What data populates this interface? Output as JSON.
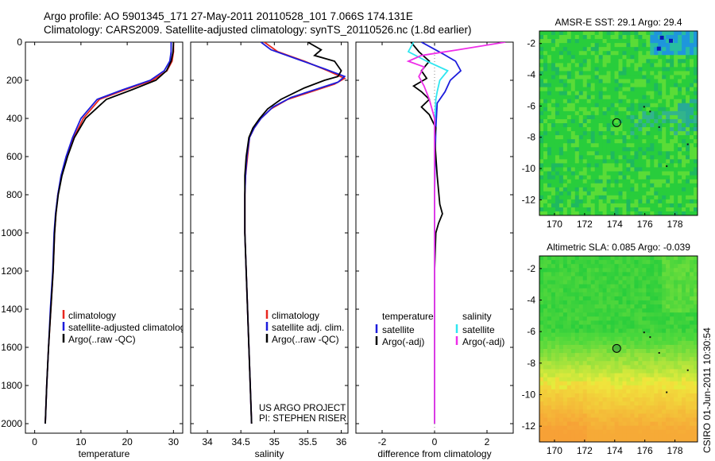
{
  "header": {
    "line1": "Argo profile: AO 5901345_171 27-May-2011 20110528_101 7.066S 174.131E",
    "line2": "Climatology: CARS2009. Satellite-adjusted climatology: synTS_20110526.nc (1.8d earlier)"
  },
  "credit": "CSIRO 01-Jun-2011 10:30:54",
  "colors": {
    "climatology": "#e8261e",
    "satellite": "#1c1cdc",
    "argo": "#000000",
    "sal_satellite": "#2fe6f0",
    "sal_argo": "#ee2ee8",
    "ocean": "#22cc3c"
  },
  "chart_data": [
    {
      "type": "line",
      "id": "temperature",
      "xlabel": "temperature",
      "ylabel": "",
      "xlim": [
        -2,
        32
      ],
      "ylim": [
        2050,
        0
      ],
      "xticks": [
        0,
        10,
        20,
        30
      ],
      "yticks": [
        0,
        200,
        400,
        600,
        800,
        1000,
        1200,
        1400,
        1600,
        1800,
        2000
      ],
      "legend": {
        "position": "bottom-right",
        "entries": [
          "climatology",
          "satellite-adjusted climatology",
          "Argo(..raw -QC)"
        ]
      },
      "series": [
        {
          "name": "climatology",
          "color": "#e8261e",
          "points": [
            [
              30.0,
              0
            ],
            [
              30.0,
              50
            ],
            [
              29.7,
              100
            ],
            [
              28.6,
              150
            ],
            [
              25.5,
              200
            ],
            [
              19.5,
              250
            ],
            [
              14.0,
              300
            ],
            [
              10.5,
              400
            ],
            [
              8.5,
              500
            ],
            [
              7.0,
              600
            ],
            [
              5.8,
              700
            ],
            [
              5.0,
              800
            ],
            [
              4.6,
              900
            ],
            [
              4.3,
              1000
            ],
            [
              4.0,
              1200
            ],
            [
              3.5,
              1400
            ],
            [
              3.0,
              1600
            ],
            [
              2.6,
              1800
            ],
            [
              2.3,
              2000
            ]
          ]
        },
        {
          "name": "satellite-adjusted climatology",
          "color": "#1c1cdc",
          "points": [
            [
              29.5,
              0
            ],
            [
              29.5,
              50
            ],
            [
              29.2,
              100
            ],
            [
              28.0,
              150
            ],
            [
              25.0,
              200
            ],
            [
              19.0,
              250
            ],
            [
              13.5,
              300
            ],
            [
              10.0,
              400
            ],
            [
              8.2,
              500
            ],
            [
              6.8,
              600
            ],
            [
              5.7,
              700
            ],
            [
              5.0,
              800
            ],
            [
              4.5,
              900
            ],
            [
              4.2,
              1000
            ],
            [
              3.9,
              1200
            ],
            [
              3.4,
              1400
            ],
            [
              3.0,
              1600
            ],
            [
              2.6,
              1800
            ],
            [
              2.3,
              2000
            ]
          ]
        },
        {
          "name": "Argo(..raw -QC)",
          "color": "#000000",
          "points": [
            [
              30.0,
              0
            ],
            [
              29.9,
              50
            ],
            [
              29.5,
              100
            ],
            [
              28.5,
              150
            ],
            [
              26.2,
              200
            ],
            [
              21.0,
              250
            ],
            [
              15.5,
              300
            ],
            [
              11.0,
              400
            ],
            [
              8.6,
              500
            ],
            [
              7.1,
              600
            ],
            [
              5.9,
              700
            ],
            [
              5.1,
              800
            ],
            [
              4.6,
              900
            ],
            [
              4.3,
              1000
            ],
            [
              4.0,
              1200
            ],
            [
              3.5,
              1400
            ],
            [
              3.0,
              1600
            ],
            [
              2.6,
              1800
            ],
            [
              2.3,
              2000
            ]
          ]
        }
      ]
    },
    {
      "type": "line",
      "id": "salinity",
      "xlabel": "salinity",
      "ylabel": "",
      "xlim": [
        33.75,
        36.1
      ],
      "ylim": [
        2050,
        0
      ],
      "xticks": [
        34,
        34.5,
        35,
        35.5,
        36
      ],
      "legend": {
        "position": "bottom-right",
        "entries": [
          "climatology",
          "satellite adj. clim.",
          "Argo(..raw -QC)"
        ]
      },
      "annotation": [
        "US ARGO PROJECT",
        "PI: STEPHEN RISER"
      ],
      "series": [
        {
          "name": "climatology",
          "color": "#e8261e",
          "points": [
            [
              34.85,
              0
            ],
            [
              35.05,
              50
            ],
            [
              35.45,
              100
            ],
            [
              35.8,
              150
            ],
            [
              36.05,
              190
            ],
            [
              35.9,
              220
            ],
            [
              35.55,
              260
            ],
            [
              35.2,
              300
            ],
            [
              34.95,
              350
            ],
            [
              34.8,
              400
            ],
            [
              34.7,
              450
            ],
            [
              34.63,
              500
            ],
            [
              34.6,
              600
            ],
            [
              34.57,
              700
            ],
            [
              34.56,
              800
            ],
            [
              34.56,
              1000
            ],
            [
              34.58,
              1200
            ],
            [
              34.6,
              1400
            ],
            [
              34.62,
              1600
            ],
            [
              34.64,
              1800
            ],
            [
              34.66,
              2000
            ]
          ]
        },
        {
          "name": "satellite adj. clim.",
          "color": "#1c1cdc",
          "points": [
            [
              34.8,
              0
            ],
            [
              34.95,
              40
            ],
            [
              35.35,
              90
            ],
            [
              35.75,
              140
            ],
            [
              36.05,
              180
            ],
            [
              35.95,
              210
            ],
            [
              35.6,
              250
            ],
            [
              35.25,
              290
            ],
            [
              34.98,
              340
            ],
            [
              34.8,
              400
            ],
            [
              34.7,
              450
            ],
            [
              34.63,
              500
            ],
            [
              34.59,
              600
            ],
            [
              34.57,
              700
            ],
            [
              34.56,
              800
            ],
            [
              34.56,
              1000
            ],
            [
              34.58,
              1200
            ],
            [
              34.6,
              1400
            ],
            [
              34.62,
              1600
            ],
            [
              34.64,
              1800
            ],
            [
              34.66,
              2000
            ]
          ]
        },
        {
          "name": "Argo(..raw -QC)",
          "color": "#000000",
          "points": [
            [
              35.5,
              0
            ],
            [
              35.7,
              40
            ],
            [
              35.6,
              70
            ],
            [
              35.9,
              100
            ],
            [
              36.0,
              150
            ],
            [
              35.95,
              180
            ],
            [
              35.75,
              200
            ],
            [
              35.45,
              240
            ],
            [
              35.1,
              300
            ],
            [
              34.9,
              350
            ],
            [
              34.78,
              400
            ],
            [
              34.68,
              450
            ],
            [
              34.62,
              500
            ],
            [
              34.58,
              600
            ],
            [
              34.56,
              700
            ],
            [
              34.56,
              800
            ],
            [
              34.56,
              1000
            ],
            [
              34.58,
              1200
            ],
            [
              34.6,
              1400
            ],
            [
              34.62,
              1600
            ],
            [
              34.64,
              1800
            ],
            [
              34.66,
              2000
            ]
          ]
        }
      ]
    },
    {
      "type": "line",
      "id": "difference",
      "xlabel": "difference from climatology",
      "ylabel": "",
      "xlim": [
        -3,
        3
      ],
      "ylim": [
        2050,
        0
      ],
      "xticks": [
        -2,
        0,
        2
      ],
      "legend": {
        "position": "bottom",
        "group_titles": [
          "temperature",
          "salinity"
        ],
        "entries": [
          "satellite",
          "Argo(-adj)",
          "satellite",
          "Argo(-adj)"
        ]
      },
      "series": [
        {
          "name": "temperature satellite",
          "color": "#1c1cdc",
          "points": [
            [
              -0.5,
              0
            ],
            [
              0.3,
              60
            ],
            [
              0.8,
              100
            ],
            [
              1.0,
              150
            ],
            [
              0.6,
              200
            ],
            [
              0.4,
              260
            ],
            [
              0.1,
              320
            ],
            [
              0.05,
              450
            ],
            [
              0.02,
              600
            ],
            [
              0.0,
              800
            ],
            [
              0.0,
              1200
            ],
            [
              0.0,
              1600
            ],
            [
              0.0,
              2000
            ]
          ]
        },
        {
          "name": "temperature Argo(-adj)",
          "color": "#000000",
          "points": [
            [
              -0.9,
              0
            ],
            [
              -0.6,
              50
            ],
            [
              -0.2,
              100
            ],
            [
              -0.5,
              150
            ],
            [
              -0.3,
              190
            ],
            [
              -0.8,
              230
            ],
            [
              -0.5,
              260
            ],
            [
              -0.2,
              300
            ],
            [
              -0.5,
              340
            ],
            [
              -0.2,
              380
            ],
            [
              0.05,
              450
            ],
            [
              0.0,
              500
            ],
            [
              0.1,
              700
            ],
            [
              0.2,
              850
            ],
            [
              0.3,
              900
            ],
            [
              0.15,
              950
            ],
            [
              0.05,
              1000
            ],
            [
              0.0,
              1200
            ],
            [
              0.0,
              1600
            ],
            [
              0.0,
              2000
            ]
          ]
        },
        {
          "name": "salinity satellite",
          "color": "#2fe6f0",
          "points": [
            [
              -0.8,
              0
            ],
            [
              -1.0,
              50
            ],
            [
              -0.3,
              100
            ],
            [
              0.5,
              150
            ],
            [
              0.2,
              200
            ],
            [
              0.1,
              260
            ],
            [
              0.05,
              300
            ],
            [
              0.0,
              450
            ],
            [
              0.0,
              800
            ],
            [
              0.0,
              1200
            ],
            [
              0.0,
              1600
            ],
            [
              0.0,
              2000
            ]
          ]
        },
        {
          "name": "salinity Argo(-adj)",
          "color": "#ee2ee8",
          "points": [
            [
              2.7,
              0
            ],
            [
              0.9,
              40
            ],
            [
              -0.5,
              70
            ],
            [
              -1.0,
              100
            ],
            [
              -0.4,
              130
            ],
            [
              -0.6,
              180
            ],
            [
              -0.4,
              230
            ],
            [
              -0.2,
              300
            ],
            [
              0.0,
              400
            ],
            [
              0.0,
              1200
            ],
            [
              0.0,
              1600
            ],
            [
              0.0,
              2000
            ]
          ]
        }
      ]
    },
    {
      "type": "heatmap",
      "id": "sst-map",
      "title": "AMSR-E SST: 29.1 Argo: 29.4",
      "xlim": [
        169,
        179.5
      ],
      "ylim": [
        -13,
        -1.2
      ],
      "xticks": [
        170,
        172,
        174,
        176,
        178
      ],
      "yticks": [
        -2,
        -4,
        -6,
        -8,
        -10,
        -12
      ],
      "argo_position": [
        174.131,
        -7.066
      ]
    },
    {
      "type": "heatmap",
      "id": "sla-map",
      "title": "Altimetric SLA: 0.085 Argo: -0.039",
      "xlim": [
        169,
        179.5
      ],
      "ylim": [
        -13,
        -1.2
      ],
      "xticks": [
        170,
        172,
        174,
        176,
        178
      ],
      "yticks": [
        -2,
        -4,
        -6,
        -8,
        -10,
        -12
      ],
      "argo_position": [
        174.131,
        -7.066
      ]
    }
  ]
}
